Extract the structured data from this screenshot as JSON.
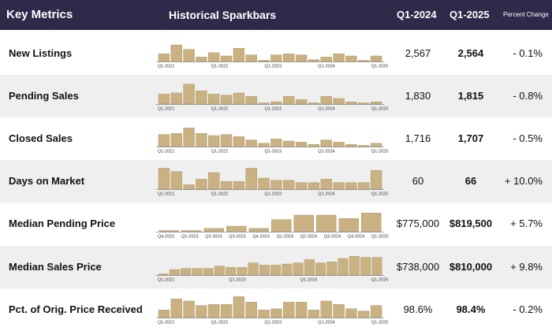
{
  "header": {
    "metric": "Key Metrics",
    "sparkbars": "Historical Sparkbars",
    "col1": "Q1-2024",
    "col2": "Q1-2025",
    "col3": "Percent Change"
  },
  "colors": {
    "header_bg": "#2e2a4a",
    "bar": "#c9b182",
    "bar_edge": "#a58f5f",
    "shade": "#efefef"
  },
  "chart_data": [
    {
      "type": "bar",
      "title": "New Listings",
      "q1_2024": "2,567",
      "q1_2025": "2,564",
      "change": "- 0.1%",
      "tick_labels": [
        "Q1-2021",
        "Q1-2022",
        "Q1-2023",
        "Q1-2024",
        "Q1-2025"
      ],
      "values": [
        0.35,
        0.75,
        0.55,
        0.2,
        0.4,
        0.25,
        0.6,
        0.3,
        0.05,
        0.3,
        0.35,
        0.3,
        0.08,
        0.2,
        0.35,
        0.25,
        0.05,
        0.25
      ]
    },
    {
      "type": "bar",
      "title": "Pending Sales",
      "q1_2024": "1,830",
      "q1_2025": "1,815",
      "change": "- 0.8%",
      "tick_labels": [
        "Q1-2021",
        "Q1-2022",
        "Q1-2023",
        "Q1-2024",
        "Q1-2025"
      ],
      "values": [
        0.45,
        0.5,
        0.9,
        0.6,
        0.45,
        0.4,
        0.5,
        0.35,
        0.05,
        0.1,
        0.35,
        0.2,
        0.05,
        0.35,
        0.25,
        0.1,
        0.05,
        0.1
      ]
    },
    {
      "type": "bar",
      "title": "Closed Sales",
      "q1_2024": "1,716",
      "q1_2025": "1,707",
      "change": "- 0.5%",
      "tick_labels": [
        "Q1-2021",
        "Q1-2022",
        "Q1-2023",
        "Q1-2024",
        "Q1-2025"
      ],
      "values": [
        0.55,
        0.6,
        0.85,
        0.6,
        0.5,
        0.55,
        0.45,
        0.3,
        0.15,
        0.35,
        0.25,
        0.2,
        0.1,
        0.3,
        0.2,
        0.1,
        0.05,
        0.15
      ]
    },
    {
      "type": "bar",
      "title": "Days on Market",
      "q1_2024": "60",
      "q1_2025": "66",
      "change": "+ 10.0%",
      "tick_labels": [
        "Q1-2021",
        "Q1-2022",
        "Q1-2023",
        "Q1-2024",
        "Q1-2025"
      ],
      "values": [
        0.95,
        0.8,
        0.2,
        0.45,
        0.75,
        0.35,
        0.35,
        0.95,
        0.5,
        0.4,
        0.4,
        0.3,
        0.3,
        0.45,
        0.3,
        0.3,
        0.3,
        0.85
      ]
    },
    {
      "type": "bar",
      "title": "Median Pending Price",
      "q1_2024": "$775,000",
      "q1_2025": "$819,500",
      "change": "+ 5.7%",
      "tick_labels": [
        "Q4-2022",
        "Q1-2023",
        "Q2-2023",
        "Q3-2023",
        "Q4-2023",
        "Q1-2024",
        "Q2-2024",
        "Q3-2024",
        "Q4-2024",
        "Q1-2025"
      ],
      "values": [
        0.03,
        0.03,
        0.15,
        0.25,
        0.15,
        0.55,
        0.75,
        0.75,
        0.6,
        0.85
      ]
    },
    {
      "type": "bar",
      "title": "Median Sales Price",
      "q1_2024": "$738,000",
      "q1_2025": "$810,000",
      "change": "+ 9.8%",
      "tick_labels": [
        "Q1-2021",
        "Q1-2023",
        "Q1-2024",
        "Q1-2025"
      ],
      "values": [
        0.05,
        0.25,
        0.3,
        0.3,
        0.3,
        0.4,
        0.35,
        0.35,
        0.55,
        0.45,
        0.45,
        0.5,
        0.55,
        0.7,
        0.55,
        0.6,
        0.75,
        0.85,
        0.8,
        0.8
      ]
    },
    {
      "type": "bar",
      "title": "Pct. of Orig. Price Received",
      "q1_2024": "98.6%",
      "q1_2025": "98.4%",
      "change": "- 0.2%",
      "tick_labels": [
        "Q1-2021",
        "Q1-2022",
        "Q1-2023",
        "Q1-2024",
        "Q1-2025"
      ],
      "values": [
        0.35,
        0.85,
        0.75,
        0.55,
        0.6,
        0.6,
        0.95,
        0.7,
        0.35,
        0.4,
        0.7,
        0.7,
        0.35,
        0.75,
        0.6,
        0.4,
        0.3,
        0.55
      ]
    }
  ]
}
